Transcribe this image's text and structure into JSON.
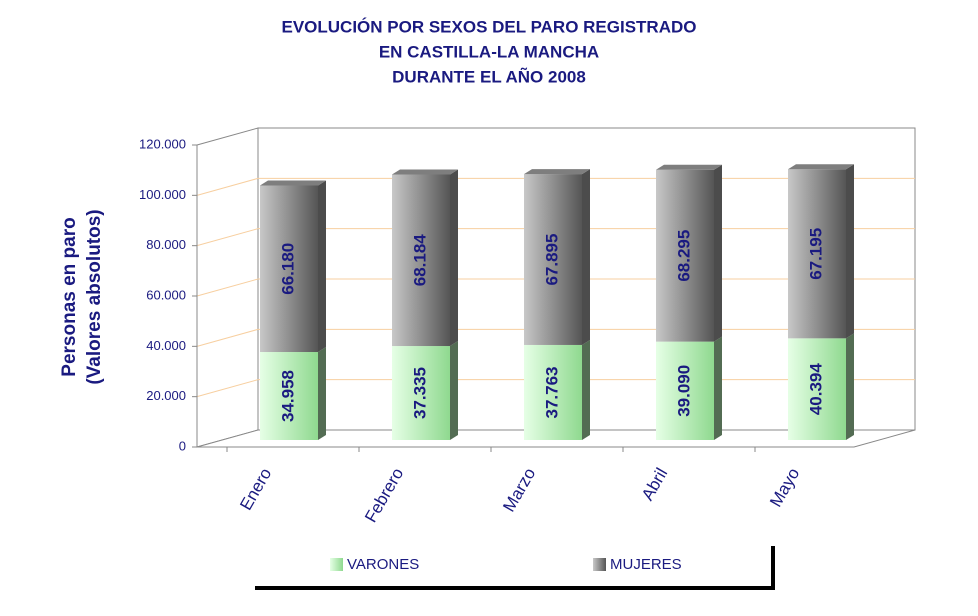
{
  "chart_data": {
    "type": "bar3d_stacked",
    "title": [
      "EVOLUCIÓN POR SEXOS DEL PARO REGISTRADO",
      "EN CASTILLA-LA MANCHA",
      "DURANTE EL AÑO 2008"
    ],
    "y_label": [
      "Personas en paro",
      "(Valores absolutos)"
    ],
    "categories": [
      "Enero",
      "Febrero",
      "Marzo",
      "Abril",
      "Mayo"
    ],
    "series": [
      {
        "name": "VARONES",
        "color": "#b8f0b8",
        "values": [
          34958,
          37335,
          37763,
          39090,
          40394
        ],
        "value_labels": [
          "34.958",
          "37.335",
          "37.763",
          "39.090",
          "40.394"
        ]
      },
      {
        "name": "MUJERES",
        "color": "#a8a8a8",
        "values": [
          66180,
          68184,
          67895,
          68295,
          67195
        ],
        "value_labels": [
          "66.180",
          "68.184",
          "67.895",
          "68.295",
          "67.195"
        ]
      }
    ],
    "ylim": [
      0,
      120000
    ],
    "yticks": [
      {
        "value": 120000,
        "label": "120.000"
      },
      {
        "value": 100000,
        "label": "100.000"
      },
      {
        "value": 80000,
        "label": "80.000"
      },
      {
        "value": 60000,
        "label": "60.000"
      },
      {
        "value": 40000,
        "label": "40.000"
      },
      {
        "value": 20000,
        "label": "20.000"
      },
      0
    ],
    "grid": true
  }
}
